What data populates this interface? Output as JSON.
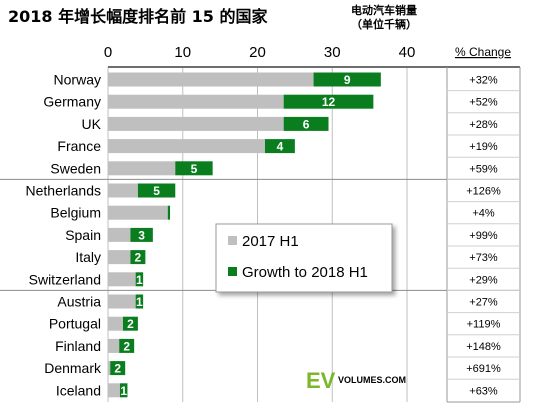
{
  "chart_data": {
    "type": "bar",
    "title": "2018 年增长幅度排名前 15 的国家",
    "unit_line1": "电动汽车销量",
    "unit_line2": "（单位千辆）",
    "x_ticks": [
      "0",
      "10",
      "20",
      "30",
      "40"
    ],
    "xlim": [
      0,
      40
    ],
    "grid": true,
    "legend_position": "center",
    "change_header": "% Change",
    "categories": [
      "Norway",
      "Germany",
      "UK",
      "France",
      "Sweden",
      "Netherlands",
      "Belgium",
      "Spain",
      "Italy",
      "Switzerland",
      "Austria",
      "Portugal",
      "Finland",
      "Denmark",
      "Iceland"
    ],
    "series": [
      {
        "name": "2017 H1",
        "color": "#bfbfbf",
        "values": [
          27.5,
          23.5,
          23.5,
          21,
          9,
          4,
          8,
          3,
          3,
          3.7,
          3.7,
          2,
          1.5,
          0.3,
          1.6
        ]
      },
      {
        "name": "Growth to 2018 H1",
        "color": "#0a7d1e",
        "values": [
          9,
          12,
          6,
          4,
          5,
          5,
          0.3,
          3,
          2,
          1,
          1,
          2,
          2,
          2,
          1
        ]
      }
    ],
    "data_labels": [
      "9",
      "12",
      "6",
      "4",
      "5",
      "5",
      "",
      "3",
      "2",
      "1",
      "1",
      "2",
      "2",
      "2",
      "1"
    ],
    "pct_change": [
      "+32%",
      "+52%",
      "+28%",
      "+19%",
      "+59%",
      "+126%",
      "+4%",
      "+99%",
      "+73%",
      "+29%",
      "+27%",
      "+119%",
      "+148%",
      "+691%",
      "+63%"
    ],
    "group_breaks_after": [
      4,
      9
    ]
  },
  "logo": {
    "ev": "EV",
    "volumes": "VOLUMES.COM",
    "color": "#7bb62b"
  }
}
